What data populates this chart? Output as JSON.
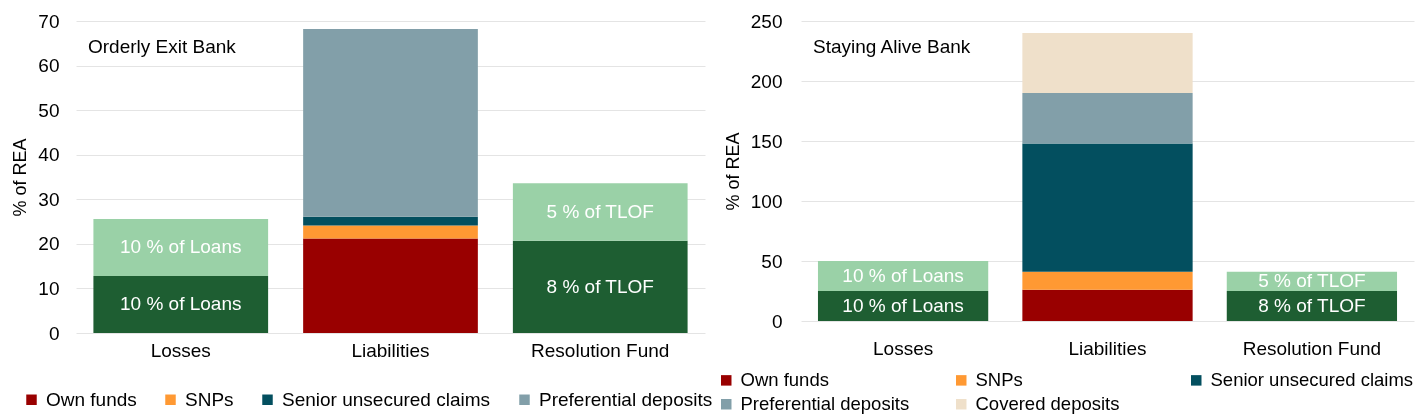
{
  "chart_data": [
    {
      "type": "bar",
      "stacked": true,
      "categories": [
        "Losses",
        "Liabilities",
        "Resolution Fund"
      ],
      "series": [
        {
          "color": "#1e5e32",
          "values": [
            12.8,
            null,
            20.7
          ]
        },
        {
          "color": "#9ad1a7",
          "values": [
            12.8,
            null,
            12.9
          ]
        },
        {
          "name": "Own funds",
          "color": "#990000",
          "values": [
            null,
            21.2,
            null
          ]
        },
        {
          "name": "SNPs",
          "color": "#ff9933",
          "values": [
            null,
            2.9,
            null
          ]
        },
        {
          "name": "Senior unsecured claims",
          "color": "#034f5f",
          "values": [
            null,
            2,
            null
          ]
        },
        {
          "name": "Preferential deposits",
          "color": "#829fa9",
          "values": [
            null,
            42.1,
            null
          ]
        }
      ],
      "ylabel": "% of REA",
      "ylim": [
        0,
        70
      ],
      "yticks": [
        0,
        10,
        20,
        30,
        40,
        50,
        60,
        70
      ],
      "grid": "y",
      "legend": "bottom",
      "annotations": [
        "Orderly Exit Bank",
        {
          "text": "10 % of Loans",
          "x": "Losses",
          "y": 12.8
        },
        {
          "text": "10 % of Loans",
          "x": "Losses",
          "y": 25.6
        },
        {
          "text": "8 % of TLOF",
          "x": "Resolution Fund",
          "y": 20.7
        },
        {
          "text": "5 % of TLOF",
          "x": "Resolution Fund",
          "y": 33.6
        }
      ]
    },
    {
      "type": "bar",
      "stacked": true,
      "categories": [
        "Losses",
        "Liabilities",
        "Resolution Fund"
      ],
      "series": [
        {
          "color": "#1e5e32",
          "values": [
            25,
            null,
            25
          ]
        },
        {
          "color": "#9ad1a7",
          "values": [
            25,
            null,
            16
          ]
        },
        {
          "name": "Own funds",
          "color": "#990000",
          "values": [
            null,
            26,
            null
          ]
        },
        {
          "name": "SNPs",
          "color": "#ff9933",
          "values": [
            null,
            15,
            null
          ]
        },
        {
          "name": "Senior unsecured claims",
          "color": "#034f5f",
          "values": [
            null,
            107,
            null
          ]
        },
        {
          "name": "Preferential deposits",
          "color": "#829fa9",
          "values": [
            null,
            42,
            null
          ]
        },
        {
          "name": "Covered deposits",
          "color": "#efe0ca",
          "values": [
            null,
            50,
            null
          ]
        }
      ],
      "ylabel": "% of REA",
      "ylim": [
        0,
        250
      ],
      "yticks": [
        0,
        50,
        100,
        150,
        200,
        250
      ],
      "grid": "y",
      "legend": "bottom",
      "annotations": [
        "Staying Alive Bank",
        {
          "text": "10 % of Loans",
          "x": "Losses",
          "y": 25
        },
        {
          "text": "10 % of Loans",
          "x": "Losses",
          "y": 50
        },
        {
          "text": "8 % of TLOF",
          "x": "Resolution Fund",
          "y": 25
        },
        {
          "text": "5 % of TLOF",
          "x": "Resolution Fund",
          "y": 41
        }
      ]
    }
  ]
}
